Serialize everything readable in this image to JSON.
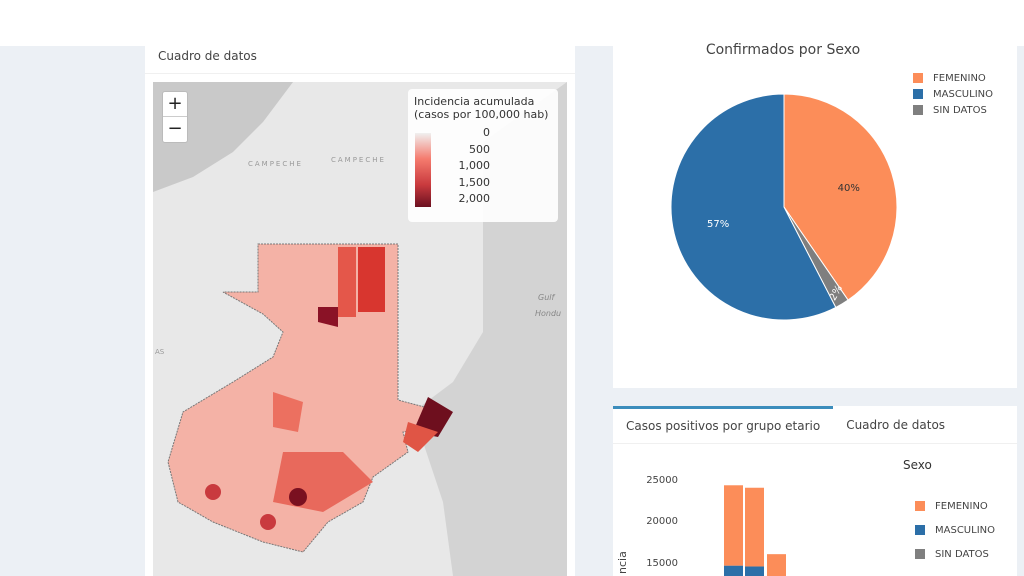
{
  "map_card": {
    "header": "Cuadro de datos",
    "zoom_in": "+",
    "zoom_out": "−",
    "legend": {
      "title_line1": "Incidencia acumulada",
      "title_line2": "(casos por 100,000 hab)",
      "ticks": [
        "0",
        "500",
        "1,000",
        "1,500",
        "2,000"
      ]
    },
    "labels": {
      "campeche1": "CAMPECHE",
      "campeche2": "CAMPECHE",
      "gulf1": "Gulf",
      "gulf2": "Hondu",
      "as": "AS"
    }
  },
  "pie_card": {
    "title": "Confirmados por Sexo",
    "chart_data": {
      "type": "pie",
      "title": "Confirmados por Sexo",
      "slices": [
        {
          "label": "FEMENINO",
          "value": 40,
          "color": "#fc8d59"
        },
        {
          "label": "SIN DATOS",
          "value": 2,
          "color": "#7f7f7f"
        },
        {
          "label": "MASCULINO",
          "value": 57,
          "color": "#2c6fa8"
        }
      ],
      "legend": [
        "FEMENINO",
        "MASCULINO",
        "SIN DATOS"
      ],
      "data_labels": [
        "40%",
        "2%",
        "57%"
      ]
    }
  },
  "bar_card": {
    "tabs": [
      "Casos positivos por grupo etario",
      "Cuadro de datos"
    ],
    "legend_title": "Sexo",
    "legend": [
      "FEMENINO",
      "MASCULINO",
      "SIN DATOS"
    ],
    "ylabel_partial": "ncia",
    "chart_data": {
      "type": "bar",
      "stacked": true,
      "yticks": [
        "25000",
        "20000",
        "15000"
      ],
      "series": [
        {
          "name": "FEMENINO",
          "values": [
            9800,
            9600,
            16200
          ]
        },
        {
          "name": "MASCULINO",
          "values": [
            14800,
            14700,
            null
          ]
        }
      ]
    }
  }
}
